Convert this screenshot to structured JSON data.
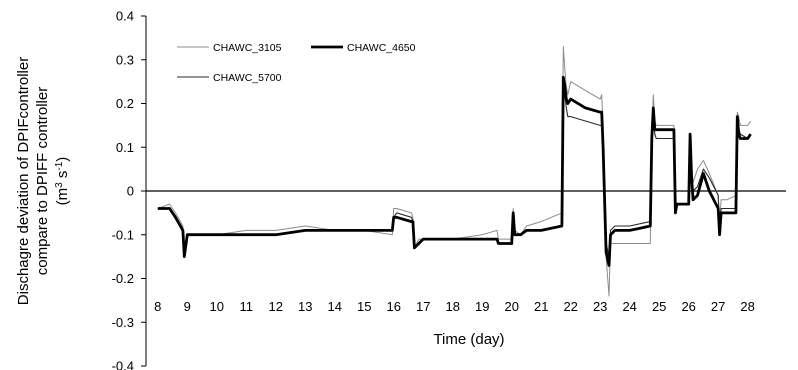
{
  "chart_data": {
    "type": "line",
    "title": "",
    "xlabel": "Time (day)",
    "ylabel_lines": [
      "Dischagre deviation of DPIFcontroller",
      "compare to DPIFF controller"
    ],
    "ylabel_unit": {
      "base": "(m",
      "sup1": "3",
      "mid": " s",
      "sup2": "-1",
      "end": ")"
    },
    "xlim": [
      7.6,
      29.3
    ],
    "ylim": [
      -0.4,
      0.4
    ],
    "x_ticks": [
      8,
      9,
      10,
      11,
      12,
      13,
      14,
      15,
      16,
      17,
      18,
      19,
      20,
      21,
      22,
      23,
      24,
      25,
      26,
      27,
      28
    ],
    "x_tick_labels": [
      "8",
      "9",
      "10",
      "11",
      "12",
      "13",
      "14",
      "15",
      "16",
      "17",
      "18",
      "19",
      "20",
      "21",
      "22",
      "23",
      "24",
      "25",
      "26",
      "27",
      "28"
    ],
    "y_ticks": [
      0.4,
      0.3,
      0.2,
      0.1,
      0,
      -0.1,
      -0.2,
      -0.3,
      -0.4
    ],
    "y_tick_labels": [
      "0.4",
      "0.3",
      "0.2",
      "0.1",
      "0",
      "-0.1",
      "-0.2",
      "-0.3",
      "-0.4"
    ],
    "grid": false,
    "zero_line": true,
    "legend_position": "top-left",
    "series": [
      {
        "name": "CHAWC_3105",
        "color": "#8c8c8c",
        "x": [
          8.0,
          8.4,
          8.6,
          8.85,
          8.9,
          9.0,
          9.3,
          10.0,
          11.0,
          12.0,
          13.0,
          14.0,
          15.0,
          15.95,
          16.0,
          16.1,
          16.6,
          16.65,
          16.7,
          16.85,
          17.0,
          18.0,
          19.0,
          19.5,
          19.55,
          20.0,
          20.05,
          20.1,
          20.3,
          20.5,
          21.0,
          21.7,
          21.75,
          21.8,
          21.85,
          21.9,
          22.0,
          22.5,
          23.0,
          23.05,
          23.1,
          23.2,
          23.3,
          23.35,
          23.5,
          24.0,
          24.7,
          24.75,
          24.8,
          24.85,
          24.9,
          25.0,
          25.5,
          25.55,
          25.6,
          25.7,
          26.0,
          26.05,
          26.1,
          26.15,
          26.3,
          26.5,
          26.7,
          27.0,
          27.05,
          27.1,
          27.3,
          27.6,
          27.65,
          27.7,
          27.75,
          28.0,
          28.1
        ],
        "y": [
          -0.04,
          -0.03,
          -0.05,
          -0.08,
          -0.14,
          -0.1,
          -0.1,
          -0.1,
          -0.09,
          -0.09,
          -0.08,
          -0.09,
          -0.09,
          -0.1,
          -0.04,
          -0.04,
          -0.05,
          -0.06,
          -0.13,
          -0.11,
          -0.11,
          -0.11,
          -0.1,
          -0.09,
          -0.11,
          -0.11,
          -0.04,
          -0.09,
          -0.1,
          -0.08,
          -0.07,
          -0.05,
          0.33,
          0.28,
          0.24,
          0.22,
          0.25,
          0.23,
          0.21,
          0.22,
          0.15,
          -0.15,
          -0.24,
          -0.12,
          -0.12,
          -0.12,
          -0.12,
          0.13,
          0.22,
          0.16,
          0.15,
          0.15,
          0.15,
          -0.04,
          -0.03,
          -0.03,
          -0.03,
          0.13,
          0.05,
          0.02,
          0.05,
          0.07,
          0.04,
          -0.01,
          -0.08,
          -0.02,
          -0.02,
          -0.01,
          0.18,
          0.17,
          0.15,
          0.15,
          0.16
        ]
      },
      {
        "name": "CHAWC_4650",
        "color": "#000000",
        "x": [
          8.0,
          8.4,
          8.6,
          8.85,
          8.9,
          9.0,
          9.3,
          10.0,
          11.0,
          12.0,
          13.0,
          14.0,
          15.0,
          15.95,
          16.0,
          16.1,
          16.6,
          16.65,
          16.7,
          16.85,
          17.0,
          18.0,
          19.0,
          19.5,
          19.55,
          20.0,
          20.05,
          20.1,
          20.3,
          20.5,
          21.0,
          21.7,
          21.75,
          21.8,
          21.85,
          21.9,
          22.0,
          22.5,
          23.0,
          23.05,
          23.1,
          23.2,
          23.3,
          23.35,
          23.5,
          24.0,
          24.7,
          24.75,
          24.8,
          24.85,
          24.9,
          25.0,
          25.5,
          25.55,
          25.6,
          25.7,
          26.0,
          26.05,
          26.1,
          26.15,
          26.3,
          26.5,
          26.7,
          27.0,
          27.05,
          27.1,
          27.3,
          27.6,
          27.65,
          27.7,
          27.75,
          28.0,
          28.1
        ],
        "y": [
          -0.04,
          -0.04,
          -0.06,
          -0.09,
          -0.15,
          -0.1,
          -0.1,
          -0.1,
          -0.1,
          -0.1,
          -0.09,
          -0.09,
          -0.09,
          -0.09,
          -0.06,
          -0.06,
          -0.07,
          -0.07,
          -0.13,
          -0.12,
          -0.11,
          -0.11,
          -0.11,
          -0.11,
          -0.12,
          -0.12,
          -0.05,
          -0.1,
          -0.1,
          -0.09,
          -0.09,
          -0.08,
          0.26,
          0.24,
          0.21,
          0.2,
          0.21,
          0.19,
          0.18,
          0.18,
          0.1,
          -0.14,
          -0.17,
          -0.1,
          -0.09,
          -0.09,
          -0.08,
          0.12,
          0.19,
          0.14,
          0.14,
          0.14,
          0.14,
          -0.05,
          -0.03,
          -0.03,
          -0.03,
          0.13,
          0.03,
          -0.02,
          -0.01,
          0.04,
          0.0,
          -0.04,
          -0.1,
          -0.05,
          -0.05,
          -0.05,
          0.17,
          0.13,
          0.12,
          0.12,
          0.13
        ]
      },
      {
        "name": "CHAWC_5700",
        "color": "#2a2a2a",
        "x": [
          8.0,
          8.4,
          8.6,
          8.85,
          8.9,
          9.0,
          9.3,
          10.0,
          11.0,
          12.0,
          13.0,
          14.0,
          15.0,
          15.95,
          16.0,
          16.1,
          16.6,
          16.65,
          16.7,
          16.85,
          17.0,
          18.0,
          19.0,
          19.5,
          19.55,
          20.0,
          20.05,
          20.1,
          20.3,
          20.5,
          21.0,
          21.7,
          21.75,
          21.8,
          21.85,
          21.9,
          22.0,
          22.5,
          23.0,
          23.05,
          23.1,
          23.2,
          23.3,
          23.35,
          23.5,
          24.0,
          24.7,
          24.75,
          24.8,
          24.85,
          24.9,
          25.0,
          25.5,
          25.55,
          25.6,
          25.7,
          26.0,
          26.05,
          26.1,
          26.15,
          26.3,
          26.5,
          26.7,
          27.0,
          27.05,
          27.1,
          27.3,
          27.6,
          27.65,
          27.7,
          27.75,
          28.0,
          28.1
        ],
        "y": [
          -0.04,
          -0.04,
          -0.06,
          -0.09,
          -0.14,
          -0.1,
          -0.1,
          -0.1,
          -0.1,
          -0.1,
          -0.09,
          -0.09,
          -0.09,
          -0.09,
          -0.06,
          -0.05,
          -0.06,
          -0.07,
          -0.13,
          -0.12,
          -0.11,
          -0.11,
          -0.11,
          -0.11,
          -0.12,
          -0.12,
          -0.05,
          -0.1,
          -0.1,
          -0.09,
          -0.09,
          -0.08,
          0.25,
          0.22,
          0.19,
          0.17,
          0.17,
          0.16,
          0.15,
          0.15,
          0.08,
          -0.12,
          -0.15,
          -0.09,
          -0.08,
          -0.08,
          -0.07,
          0.1,
          0.17,
          0.13,
          0.12,
          0.12,
          0.12,
          -0.05,
          -0.03,
          -0.03,
          -0.03,
          0.12,
          0.04,
          0.0,
          0.01,
          0.05,
          0.03,
          -0.01,
          -0.08,
          -0.04,
          -0.04,
          -0.04,
          0.16,
          0.14,
          0.13,
          0.12,
          0.13
        ]
      }
    ]
  }
}
